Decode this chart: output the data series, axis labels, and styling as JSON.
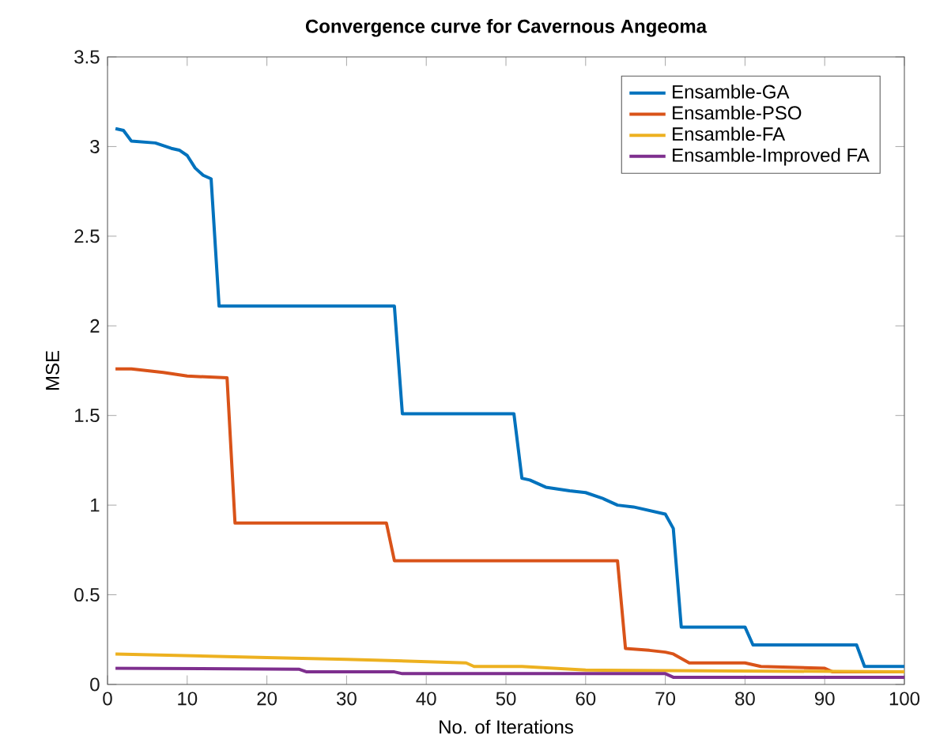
{
  "chart_data": {
    "type": "line",
    "title": "Convergence curve for Cavernous Angeoma",
    "xlabel": "No. of Iterations",
    "ylabel": "MSE",
    "xlim": [
      0,
      100
    ],
    "ylim": [
      0,
      3.5
    ],
    "xticks": [
      0,
      10,
      20,
      30,
      40,
      50,
      60,
      70,
      80,
      90,
      100
    ],
    "yticks": [
      0,
      0.5,
      1,
      1.5,
      2,
      2.5,
      3,
      3.5
    ],
    "legend": "top right",
    "grid": false,
    "series": [
      {
        "name": "Ensamble-GA",
        "color": "#0072bd",
        "x": [
          1,
          2,
          3,
          6,
          8,
          9,
          10,
          11,
          12,
          13,
          14,
          36,
          37,
          51,
          52,
          53,
          55,
          58,
          60,
          62,
          64,
          66,
          68,
          70,
          71,
          72,
          80,
          81,
          94,
          95,
          100
        ],
        "values": [
          3.1,
          3.09,
          3.03,
          3.02,
          2.99,
          2.98,
          2.95,
          2.88,
          2.84,
          2.82,
          2.11,
          2.11,
          1.51,
          1.51,
          1.15,
          1.14,
          1.1,
          1.08,
          1.07,
          1.04,
          1.0,
          0.99,
          0.97,
          0.95,
          0.87,
          0.32,
          0.32,
          0.22,
          0.22,
          0.1,
          0.1
        ]
      },
      {
        "name": "Ensamble-PSO",
        "color": "#d95319",
        "x": [
          1,
          3,
          7,
          10,
          15,
          16,
          35,
          36,
          64,
          65,
          68,
          70,
          71,
          73,
          80,
          82,
          90,
          91,
          100
        ],
        "values": [
          1.76,
          1.76,
          1.74,
          1.72,
          1.71,
          0.9,
          0.9,
          0.69,
          0.69,
          0.2,
          0.19,
          0.18,
          0.17,
          0.12,
          0.12,
          0.1,
          0.09,
          0.07,
          0.07
        ]
      },
      {
        "name": "Ensamble-FA",
        "color": "#edb120",
        "x": [
          1,
          20,
          30,
          45,
          46,
          52,
          60,
          100
        ],
        "values": [
          0.17,
          0.15,
          0.14,
          0.12,
          0.1,
          0.1,
          0.08,
          0.07
        ]
      },
      {
        "name": "Ensamble-Improved FA",
        "color": "#7e2f8e",
        "x": [
          1,
          24,
          25,
          36,
          37,
          70,
          71,
          100
        ],
        "values": [
          0.09,
          0.085,
          0.07,
          0.07,
          0.06,
          0.06,
          0.04,
          0.04
        ]
      }
    ]
  }
}
